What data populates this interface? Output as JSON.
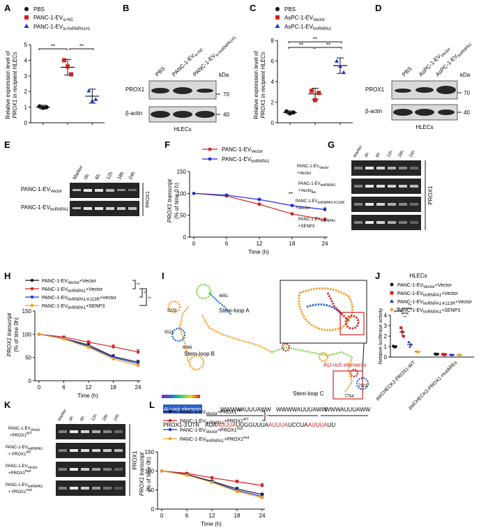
{
  "panels": {
    "A": {
      "letter": "A",
      "legend": [
        {
          "name": "PBS",
          "color": "#111111",
          "shape": "circle"
        },
        {
          "name": "PANC-1-EV",
          "sub": "si-NC",
          "color": "#d42020",
          "shape": "square"
        },
        {
          "name": "PANC-1-EV",
          "sub": "si-hnRNPA1#1",
          "color": "#1e2fd4",
          "shape": "triangle"
        }
      ],
      "ylabel_lines": [
        "Relative expression level of",
        "PROX1 in recipient HLECs"
      ],
      "sig": [
        "**",
        "**"
      ]
    },
    "B": {
      "letter": "B",
      "lanes": [
        "PBS",
        "PANC-1-EV",
        "PANC-1-EV"
      ],
      "lane_subs": [
        "",
        "si-NC",
        "si-hnRNPA1#1"
      ],
      "rows": [
        "PROX1",
        "β-actin"
      ],
      "kda_label": "kDa",
      "kda": [
        "70",
        "40"
      ],
      "cell": "HLECs"
    },
    "C": {
      "letter": "C",
      "legend": [
        {
          "name": "PBS",
          "color": "#111111",
          "shape": "circle"
        },
        {
          "name": "AsPC-1-EV",
          "sub": "Vector",
          "color": "#d42020",
          "shape": "square"
        },
        {
          "name": "AsPC-1-EV",
          "sub": "hnRNPA1",
          "color": "#1e2fd4",
          "shape": "triangle"
        }
      ],
      "ylabel_lines": [
        "Relative expression level of",
        "PROX1 in recipient HLECs"
      ],
      "sig": [
        "**",
        "**",
        "**"
      ]
    },
    "D": {
      "letter": "D",
      "lanes": [
        "PBS",
        "AsPC-1-EV",
        "AsPC-1-EV"
      ],
      "lane_subs": [
        "",
        "Vector",
        "hnRNPA1"
      ],
      "rows": [
        "PROX1",
        "β-actin"
      ],
      "kda_label": "kDa",
      "kda": [
        "70",
        "40"
      ],
      "cell": "HLECs"
    },
    "E": {
      "letter": "E",
      "lanes": [
        "Marker",
        "0h",
        "6h",
        "12h",
        "18h",
        "24h"
      ],
      "rows": [
        {
          "name": "PANC-1-EV",
          "sub": "Vector"
        },
        {
          "name": "PANC-1-EV",
          "sub": "hnRNPA1"
        }
      ],
      "gene": "PROX1"
    },
    "F": {
      "letter": "F",
      "legend": [
        {
          "name": "PANC-1-EV",
          "sub": "Vector",
          "color": "#d42020"
        },
        {
          "name": "PANC-1-EV",
          "sub": "hnRNPA1",
          "color": "#1e2fd4"
        }
      ],
      "ylabel_lines": [
        "PROX1 transcript",
        "(% of time 0 h)"
      ],
      "sig": [
        "**",
        "**"
      ]
    },
    "G": {
      "letter": "G",
      "lanes": [
        "Marker",
        "0h",
        "6h",
        "12h",
        "18h",
        "24h"
      ],
      "rows": [
        {
          "line1": "PANC-1-EV",
          "sub": "Vector",
          "line2": "+Vector"
        },
        {
          "line1": "PANC-1-EV",
          "sub": "hnRNPA1",
          "line2": "+Vector"
        },
        {
          "line1": "PANC-1-EV",
          "sub": "hnRNPA1-K113R",
          "line2": "+Vector"
        },
        {
          "line1": "PANC-1-EV",
          "sub": "hnRNPA1",
          "line2": "+SENP3"
        }
      ],
      "gene": "PROX1"
    },
    "H": {
      "letter": "H",
      "legend": [
        {
          "name": "PANC-1-EV",
          "sub": "Vector",
          "tail": "+Vector",
          "color": "#111111"
        },
        {
          "name": "PANC-1-EV",
          "sub": "hnRNPA1",
          "tail": "+Vector",
          "color": "#d42020"
        },
        {
          "name": "PANC-1-EV",
          "sub": "hnRNPA1-K113R",
          "tail": "+Vector",
          "color": "#1e2fd4"
        },
        {
          "name": "PANC-1-EV",
          "sub": "hnRNPA1",
          "tail": "+SENP3",
          "color": "#f0a020"
        }
      ],
      "ylabel_lines": [
        "PROX1 transcript",
        "(% of time 0h)"
      ],
      "sig": [
        "**",
        "**",
        "**"
      ]
    },
    "I": {
      "letter": "I",
      "labels": {
        "stem_a": "Stem-loop A",
        "stem_b": "Stem-loop B",
        "stem_c": "Stem-loop C",
        "are": "AU-rich elements",
        "n4851": "4851",
        "n5239": "5239",
        "n5521": "5521",
        "n6066": "6066",
        "n7901": "7901",
        "n7754": "7754"
      },
      "are_box": "AU-rich elements",
      "motifs": [
        "WWWWAUUUAWW",
        "WWWWAUUUAWW",
        "WWWAUUUAWW"
      ],
      "utr_label": "PROX1-3'UTR",
      "utr_seq": [
        {
          "t": "AUA",
          "red": false
        },
        {
          "t": "AUUUA",
          "red": true
        },
        {
          "t": "UUGGUUUA",
          "red": false
        },
        {
          "t": "AUUUA",
          "red": true
        },
        {
          "t": "UCCUA",
          "red": false
        },
        {
          "t": "AUUUA",
          "red": true
        },
        {
          "t": "UU",
          "red": false
        }
      ]
    },
    "J": {
      "letter": "J",
      "title": "HLECs",
      "legend": [
        {
          "name": "PANC-1-EV",
          "sub": "Vector",
          "tail": "+Vector",
          "color": "#111111",
          "shape": "circle"
        },
        {
          "name": "PANC-1-EV",
          "sub": "hnRNPA1",
          "tail": "+Vector",
          "color": "#d42020",
          "shape": "square"
        },
        {
          "name": "PANC-1-EV",
          "sub": "hnRNPA1-K113R",
          "tail": "+Vector",
          "color": "#1e2fd4",
          "shape": "triangle"
        },
        {
          "name": "PANC-1-EV",
          "sub": "hnRNPA1",
          "tail": "+SENP3",
          "color": "#f0a020",
          "shape": "diamond"
        }
      ],
      "ylabel": "Relative luciferase activity",
      "sig": [
        "**",
        "**",
        "**"
      ]
    },
    "K": {
      "letter": "K",
      "lanes": [
        "Marker",
        "0h",
        "6h",
        "12h",
        "18h",
        "24h"
      ],
      "rows": [
        {
          "line1": "PANC-1-EV",
          "sub": "Vector",
          "line2": "+PROX1",
          "sup": "WT"
        },
        {
          "line1": "PANC-1-EV",
          "sub": "hnRNPA1",
          "line2": "+ PROX1",
          "sup": "WT"
        },
        {
          "line1": "PANC-1-EV",
          "sub": "Vector",
          "line2": "+PROX1",
          "sup": "mut"
        },
        {
          "line1": "PANC-1-EV",
          "sub": "hnRNPA1",
          "line2": "+ PROX1",
          "sup": "mut"
        }
      ],
      "gene": "PROX1"
    },
    "L": {
      "letter": "L",
      "legend": [
        {
          "name": "PANC-1-EV",
          "sub": "Vector",
          "tail": "+PROX1",
          "sup": "WT",
          "color": "#111111"
        },
        {
          "name": "PANC-1-EV",
          "sub": "hnRNPA1",
          "tail": "+PROX1",
          "sup": "WT",
          "color": "#d42020"
        },
        {
          "name": "PANC-1-EV",
          "sub": "Vector",
          "tail": "+PROX1",
          "sup": "mut",
          "color": "#1e2fd4"
        },
        {
          "name": "PANC-1-EV",
          "sub": "hnRNPA1",
          "tail": "+PROX1",
          "sup": "mut",
          "color": "#f0a020"
        }
      ],
      "ylabel_lines": [
        "PROX1 transcript",
        "(% of time 0h)"
      ],
      "sig": [
        "**"
      ]
    }
  },
  "chart_data": [
    {
      "panel": "A",
      "type": "scatter",
      "categories": [
        "PBS",
        "PANC-1-EVsi-NC",
        "PANC-1-EVsi-hnRNPA1#1"
      ],
      "groups": [
        {
          "mean": 1.0,
          "sd": 0.12,
          "points": [
            1.05,
            0.95,
            1.0
          ]
        },
        {
          "mean": 3.55,
          "sd": 0.5,
          "points": [
            4.0,
            3.6,
            3.1
          ]
        },
        {
          "mean": 1.7,
          "sd": 0.45,
          "points": [
            2.05,
            1.4,
            1.5
          ]
        }
      ],
      "yticks": [
        0,
        1,
        2,
        3,
        4,
        5
      ],
      "ylim": [
        0,
        5
      ]
    },
    {
      "panel": "C",
      "type": "scatter",
      "categories": [
        "PBS",
        "AsPC-1-EVVector",
        "AsPC-1-EVhnRNPA1"
      ],
      "groups": [
        {
          "mean": 1.0,
          "sd": 0.15,
          "points": [
            1.1,
            0.9,
            1.0
          ]
        },
        {
          "mean": 2.8,
          "sd": 0.55,
          "points": [
            3.1,
            2.2,
            2.9
          ]
        },
        {
          "mean": 5.55,
          "sd": 0.75,
          "points": [
            6.0,
            5.5,
            4.9
          ]
        }
      ],
      "yticks": [
        0,
        2,
        4,
        6,
        8
      ],
      "ylim": [
        0,
        8
      ]
    },
    {
      "panel": "F",
      "type": "line",
      "x": [
        0,
        6,
        12,
        18,
        24
      ],
      "series": [
        {
          "name": "PANC-1-EVVector",
          "values": [
            100,
            94,
            75,
            53,
            40
          ],
          "err": [
            0,
            3,
            3,
            3,
            4
          ]
        },
        {
          "name": "PANC-1-EVhnRNPA1",
          "values": [
            100,
            96,
            86,
            72,
            63
          ],
          "err": [
            0,
            2,
            3,
            3,
            4
          ]
        }
      ],
      "xlabel": "Time (h)",
      "xticks": [
        0,
        6,
        12,
        18,
        24
      ],
      "yticks": [
        0,
        50,
        100,
        150
      ],
      "ylim": [
        0,
        150
      ]
    },
    {
      "panel": "H",
      "type": "line",
      "x": [
        0,
        6,
        12,
        18,
        24
      ],
      "series": [
        {
          "name": "PANC-1-EVVector+Vector",
          "values": [
            100,
            91,
            77,
            52,
            40
          ],
          "err": [
            0,
            2,
            3,
            4,
            4
          ]
        },
        {
          "name": "PANC-1-EVhnRNPA1+Vector",
          "values": [
            100,
            94,
            83,
            73,
            62
          ],
          "err": [
            0,
            2,
            3,
            4,
            5
          ]
        },
        {
          "name": "PANC-1-EVhnRNPA1-K113R+Vector",
          "values": [
            100,
            91,
            74,
            50,
            37
          ],
          "err": [
            0,
            2,
            3,
            3,
            4
          ]
        },
        {
          "name": "PANC-1-EVhnRNPA1+SENP3",
          "values": [
            100,
            90,
            72,
            47,
            33
          ],
          "err": [
            0,
            2,
            3,
            3,
            4
          ]
        }
      ],
      "xlabel": "Time (h)",
      "xticks": [
        0,
        6,
        12,
        18,
        24
      ],
      "yticks": [
        0,
        50,
        100,
        150
      ],
      "ylim": [
        0,
        150
      ]
    },
    {
      "panel": "J",
      "type": "scatter",
      "categories": [
        "psiCHECK2-PROX1-WT",
        "psiCHECK2-PROX1-mutAREs"
      ],
      "groups": [
        [
          {
            "mean": 1.0,
            "sd": 0.1,
            "points": [
              1.05,
              0.95,
              1.0
            ]
          },
          {
            "mean": 2.4,
            "sd": 0.4,
            "points": [
              2.8,
              2.4,
              2.0
            ]
          },
          {
            "mean": 1.2,
            "sd": 0.25,
            "points": [
              1.45,
              1.0,
              1.2
            ]
          },
          {
            "mean": 0.5,
            "sd": 0.08,
            "points": [
              0.55,
              0.45,
              0.5
            ]
          }
        ],
        [
          {
            "mean": 0.28,
            "sd": 0.05,
            "points": [
              0.3,
              0.25,
              0.28
            ]
          },
          {
            "mean": 0.25,
            "sd": 0.05,
            "points": [
              0.27,
              0.22,
              0.25
            ]
          },
          {
            "mean": 0.22,
            "sd": 0.05,
            "points": [
              0.24,
              0.2,
              0.22
            ]
          },
          {
            "mean": 0.2,
            "sd": 0.04,
            "points": [
              0.22,
              0.18,
              0.2
            ]
          }
        ]
      ],
      "yticks": [
        0,
        1,
        2,
        3,
        4
      ],
      "ylim": [
        0,
        4
      ]
    },
    {
      "panel": "L",
      "type": "line",
      "x": [
        0,
        6,
        12,
        18,
        24
      ],
      "series": [
        {
          "name": "PANC-1-EVVector+PROX1WT",
          "values": [
            100,
            91,
            73,
            53,
            38
          ],
          "err": [
            0,
            2,
            3,
            4,
            4
          ]
        },
        {
          "name": "PANC-1-EVhnRNPA1+PROX1WT",
          "values": [
            100,
            94,
            82,
            72,
            62
          ],
          "err": [
            0,
            2,
            3,
            4,
            5
          ]
        },
        {
          "name": "PANC-1-EVVector+PROX1mut",
          "values": [
            100,
            90,
            71,
            49,
            33
          ],
          "err": [
            0,
            2,
            3,
            4,
            4
          ]
        },
        {
          "name": "PANC-1-EVhnRNPA1+PROX1mut",
          "values": [
            100,
            89,
            70,
            46,
            30
          ],
          "err": [
            0,
            2,
            3,
            4,
            4
          ]
        }
      ],
      "xlabel": "Time (h)",
      "xticks": [
        0,
        6,
        12,
        18,
        24
      ],
      "yticks": [
        0,
        50,
        100,
        150
      ],
      "ylim": [
        0,
        150
      ]
    }
  ]
}
